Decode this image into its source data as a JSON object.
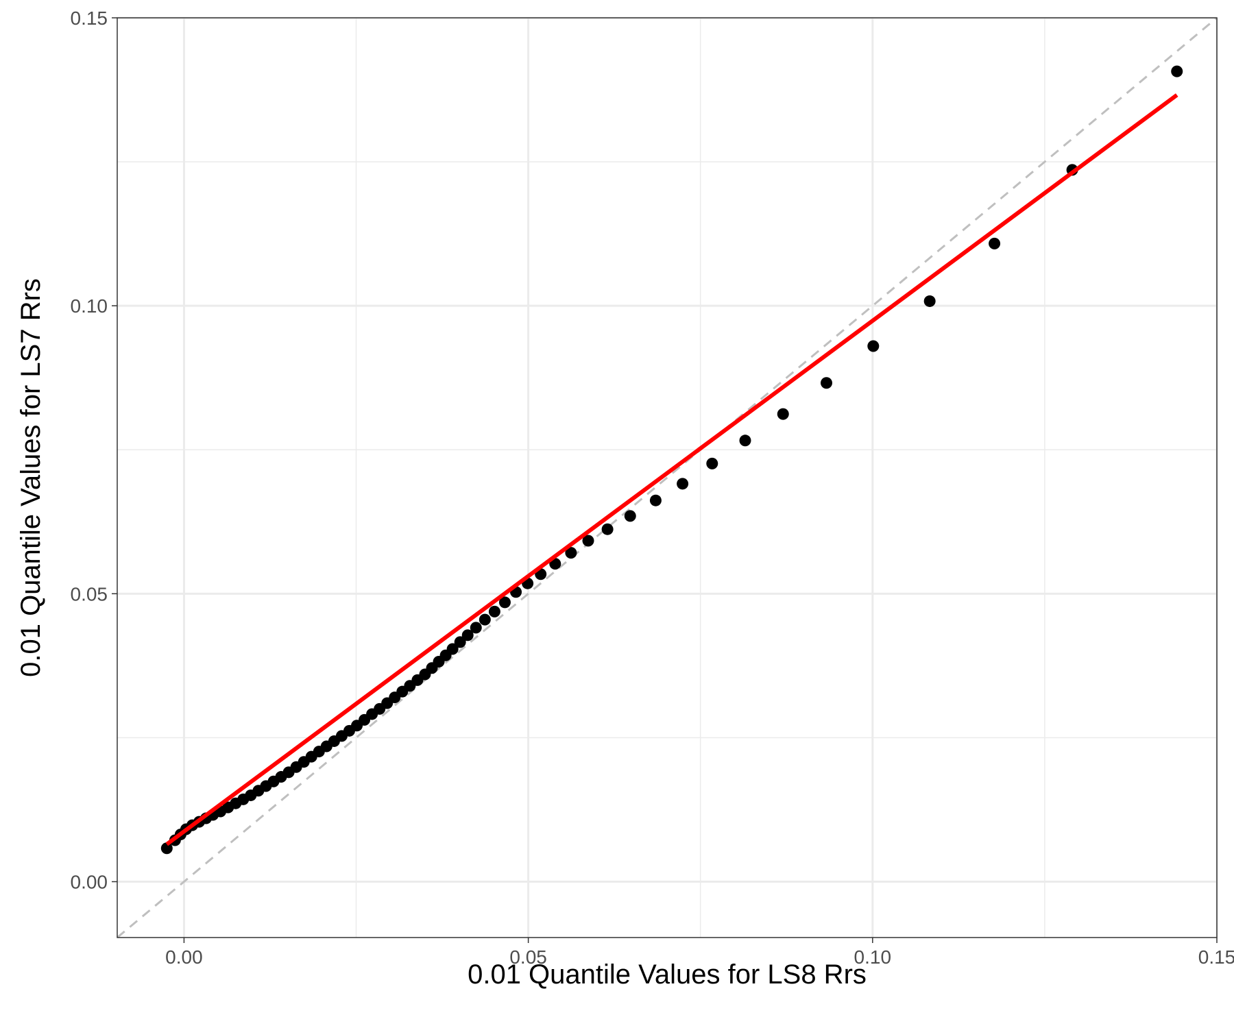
{
  "chart_data": {
    "type": "scatter",
    "title": "",
    "xlabel": "0.01 Quantile Values for LS8 Rrs",
    "ylabel": "0.01 Quantile Values for LS7 Rrs",
    "xlim": [
      -0.0097,
      0.15
    ],
    "ylim": [
      -0.0097,
      0.15
    ],
    "x_ticks": [
      0.0,
      0.05,
      0.1,
      0.15
    ],
    "y_ticks": [
      0.0,
      0.05,
      0.1,
      0.15
    ],
    "x_tick_labels": [
      "0.00",
      "0.05",
      "0.10",
      "0.15"
    ],
    "y_tick_labels": [
      "0.00",
      "0.05",
      "0.10",
      "0.15"
    ],
    "grid": true,
    "series": [
      {
        "marker": "circle",
        "color": "#000000",
        "points": [
          [
            -0.0025,
            0.0058
          ],
          [
            -0.0013,
            0.0072
          ],
          [
            -0.0005,
            0.0082
          ],
          [
            0.0003,
            0.0091
          ],
          [
            0.0012,
            0.0098
          ],
          [
            0.0022,
            0.0104
          ],
          [
            0.0032,
            0.011
          ],
          [
            0.0042,
            0.0116
          ],
          [
            0.0053,
            0.0122
          ],
          [
            0.0064,
            0.0129
          ],
          [
            0.0075,
            0.0136
          ],
          [
            0.0086,
            0.0143
          ],
          [
            0.0097,
            0.015
          ],
          [
            0.0108,
            0.0158
          ],
          [
            0.0119,
            0.0166
          ],
          [
            0.013,
            0.0174
          ],
          [
            0.0141,
            0.0182
          ],
          [
            0.0152,
            0.019
          ],
          [
            0.0163,
            0.0199
          ],
          [
            0.0174,
            0.0208
          ],
          [
            0.0185,
            0.0217
          ],
          [
            0.0196,
            0.0226
          ],
          [
            0.0207,
            0.0235
          ],
          [
            0.0218,
            0.0244
          ],
          [
            0.0229,
            0.0253
          ],
          [
            0.024,
            0.0262
          ],
          [
            0.0251,
            0.0271
          ],
          [
            0.0262,
            0.0281
          ],
          [
            0.0273,
            0.0291
          ],
          [
            0.0284,
            0.03
          ],
          [
            0.0295,
            0.031
          ],
          [
            0.0306,
            0.032
          ],
          [
            0.0317,
            0.033
          ],
          [
            0.0328,
            0.034
          ],
          [
            0.0339,
            0.035
          ],
          [
            0.035,
            0.036
          ],
          [
            0.036,
            0.0371
          ],
          [
            0.037,
            0.0382
          ],
          [
            0.038,
            0.0393
          ],
          [
            0.039,
            0.0404
          ],
          [
            0.0401,
            0.0416
          ],
          [
            0.0412,
            0.0428
          ],
          [
            0.0424,
            0.0441
          ],
          [
            0.0437,
            0.0455
          ],
          [
            0.0451,
            0.0469
          ],
          [
            0.0466,
            0.0485
          ],
          [
            0.0482,
            0.0503
          ],
          [
            0.0499,
            0.0518
          ],
          [
            0.0518,
            0.0534
          ],
          [
            0.0539,
            0.0552
          ],
          [
            0.0562,
            0.0571
          ],
          [
            0.0587,
            0.0592
          ],
          [
            0.0615,
            0.0612
          ],
          [
            0.0648,
            0.0635
          ],
          [
            0.0685,
            0.0662
          ],
          [
            0.0724,
            0.0691
          ],
          [
            0.0767,
            0.0726
          ],
          [
            0.0815,
            0.0766
          ],
          [
            0.087,
            0.0812
          ],
          [
            0.0933,
            0.0866
          ],
          [
            0.1001,
            0.093
          ],
          [
            0.1083,
            0.1008
          ],
          [
            0.1177,
            0.1108
          ],
          [
            0.129,
            0.1236
          ],
          [
            0.1442,
            0.1407
          ]
        ]
      }
    ],
    "fit_line": {
      "color": "#ff0000",
      "x": [
        -0.0025,
        0.1442
      ],
      "y": [
        0.0065,
        0.1366
      ]
    },
    "reference_line": {
      "type": "y=x",
      "color": "#bfbfbf",
      "dashed": true
    }
  }
}
